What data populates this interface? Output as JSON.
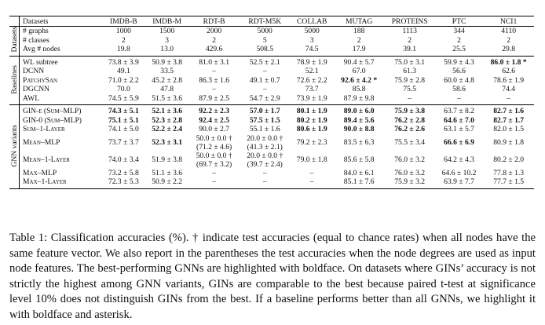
{
  "table": {
    "columns": [
      "Datasets",
      "IMDB-B",
      "IMDB-M",
      "RDT-B",
      "RDT-M5K",
      "COLLAB",
      "MUTAG",
      "PROTEINS",
      "PTC",
      "NCI1"
    ],
    "sections": [
      {
        "label": "Datasets",
        "rows": [
          {
            "name": "# graphs",
            "cells": [
              "1000",
              "1500",
              "2000",
              "5000",
              "5000",
              "188",
              "1113",
              "344",
              "4110"
            ]
          },
          {
            "name": "# classes",
            "cells": [
              "2",
              "3",
              "2",
              "5",
              "3",
              "2",
              "2",
              "2",
              "2"
            ]
          },
          {
            "name": "Avg # nodes",
            "cells": [
              "19.8",
              "13.0",
              "429.6",
              "508.5",
              "74.5",
              "17.9",
              "39.1",
              "25.5",
              "29.8"
            ]
          }
        ]
      },
      {
        "label": "Baselines",
        "rows": [
          {
            "name": "WL subtree",
            "cells": [
              "73.8 ± 3.9",
              "50.9 ± 3.8",
              "81.0 ± 3.1",
              "52.5 ± 2.1",
              "78.9 ± 1.9",
              "90.4 ± 5.7",
              "75.0 ± 3.1",
              "59.9 ± 4.3",
              {
                "text": "86.0 ± 1.8 *",
                "bold": true
              }
            ]
          },
          {
            "name": "DCNN",
            "cells": [
              "49.1",
              "33.5",
              "–",
              "–",
              "52.1",
              "67.0",
              "61.3",
              "56.6",
              "62.6"
            ]
          },
          {
            "name": "PatchySan",
            "smallcaps": true,
            "cells": [
              "71.0 ± 2.2",
              "45.2 ± 2.8",
              "86.3 ± 1.6",
              "49.1 ± 0.7",
              "72.6 ± 2.2",
              {
                "text": "92.6 ± 4.2 *",
                "bold": true
              },
              "75.9 ± 2.8",
              "60.0 ± 4.8",
              "78.6 ± 1.9"
            ]
          },
          {
            "name": "DGCNN",
            "cells": [
              "70.0",
              "47.8",
              "–",
              "–",
              "73.7",
              "85.8",
              "75.5",
              "58.6",
              "74.4"
            ]
          },
          {
            "name": "AWL",
            "cells": [
              "74.5 ± 5.9",
              "51.5 ± 3.6",
              "87.9 ± 2.5",
              "54.7 ± 2.9",
              "73.9 ± 1.9",
              "87.9 ± 9.8",
              "–",
              "–",
              "–"
            ]
          }
        ]
      },
      {
        "label": "GNN variants",
        "rows": [
          {
            "name": "GIN-ε (Sum–MLP)",
            "smallcaps": true,
            "cells": [
              {
                "text": "74.3 ± 5.1",
                "bold": true
              },
              {
                "text": "52.1 ± 3.6",
                "bold": true
              },
              {
                "text": "92.2 ± 2.3",
                "bold": true
              },
              {
                "text": "57.0 ± 1.7",
                "bold": true
              },
              {
                "text": "80.1 ± 1.9",
                "bold": true
              },
              {
                "text": "89.0 ± 6.0",
                "bold": true
              },
              {
                "text": "75.9 ± 3.8",
                "bold": true
              },
              "63.7 ± 8.2",
              {
                "text": "82.7 ± 1.6",
                "bold": true
              }
            ]
          },
          {
            "name": "GIN-0 (Sum–MLP)",
            "smallcaps": true,
            "cells": [
              {
                "text": "75.1 ± 5.1",
                "bold": true
              },
              {
                "text": "52.3 ± 2.8",
                "bold": true
              },
              {
                "text": "92.4 ± 2.5",
                "bold": true
              },
              {
                "text": "57.5 ± 1.5",
                "bold": true
              },
              {
                "text": "80.2 ± 1.9",
                "bold": true
              },
              {
                "text": "89.4 ± 5.6",
                "bold": true
              },
              {
                "text": "76.2 ± 2.8",
                "bold": true
              },
              {
                "text": "64.6 ± 7.0",
                "bold": true
              },
              {
                "text": "82.7 ± 1.7",
                "bold": true
              }
            ]
          },
          {
            "name": "Sum–1-Layer",
            "smallcaps": true,
            "cells": [
              "74.1 ± 5.0",
              {
                "text": "52.2 ± 2.4",
                "bold": true
              },
              "90.0 ± 2.7",
              "55.1 ± 1.6",
              {
                "text": "80.6 ± 1.9",
                "bold": true
              },
              {
                "text": "90.0 ± 8.8",
                "bold": true
              },
              {
                "text": "76.2 ± 2.6",
                "bold": true
              },
              "63.1 ± 5.7",
              "82.0 ± 1.5"
            ]
          },
          {
            "name": "Mean–MLP",
            "smallcaps": true,
            "cells": [
              "73.7 ± 3.7",
              {
                "text": "52.3 ± 3.1",
                "bold": true
              },
              [
                "50.0 ± 0.0 †",
                "(71.2 ± 4.6)"
              ],
              [
                "20.0 ± 0.0 †",
                "(41.3 ± 2.1)"
              ],
              "79.2 ± 2.3",
              "83.5 ± 6.3",
              "75.5 ± 3.4",
              {
                "text": "66.6 ± 6.9",
                "bold": true
              },
              "80.9 ± 1.8"
            ]
          },
          {
            "name": "Mean–1-Layer",
            "smallcaps": true,
            "cells": [
              "74.0 ± 3.4",
              "51.9 ± 3.8",
              [
                "50.0 ± 0.0 †",
                "(69.7 ± 3.2)"
              ],
              [
                "20.0 ± 0.0 †",
                "(39.7 ± 2.4)"
              ],
              "79.0 ± 1.8",
              "85.6 ± 5.8",
              "76.0 ± 3.2",
              "64.2 ± 4.3",
              "80.2 ± 2.0"
            ]
          },
          {
            "name": "Max–MLP",
            "smallcaps": true,
            "cells": [
              "73.2 ± 5.8",
              "51.1 ± 3.6",
              "–",
              "–",
              "–",
              "84.0 ± 6.1",
              "76.0 ± 3.2",
              "64.6 ± 10.2",
              "77.8 ± 1.3"
            ]
          },
          {
            "name": "Max–1-Layer",
            "smallcaps": true,
            "cells": [
              "72.3 ± 5.3",
              "50.9 ± 2.2",
              "–",
              "–",
              "–",
              "85.1 ± 7.6",
              "75.9 ± 3.2",
              "63.9 ± 7.7",
              "77.7 ± 1.5"
            ]
          }
        ]
      }
    ]
  },
  "caption": "Table 1: Classification accuracies (%). † indicate test accuracies (equal to chance rates) when all nodes have the same feature vector. We also report in the parentheses the test accuracies when the node degrees are used as input node features. The best-performing GNNs are highlighted with boldface. On datasets where GINs’ accuracy is not strictly the highest among GNN variants, GINs are comparable to the best because paired t-test at significance level 10% does not distinguish GINs from the best. If a baseline performs better than all GNNs, we highlight it with boldface and asterisk."
}
